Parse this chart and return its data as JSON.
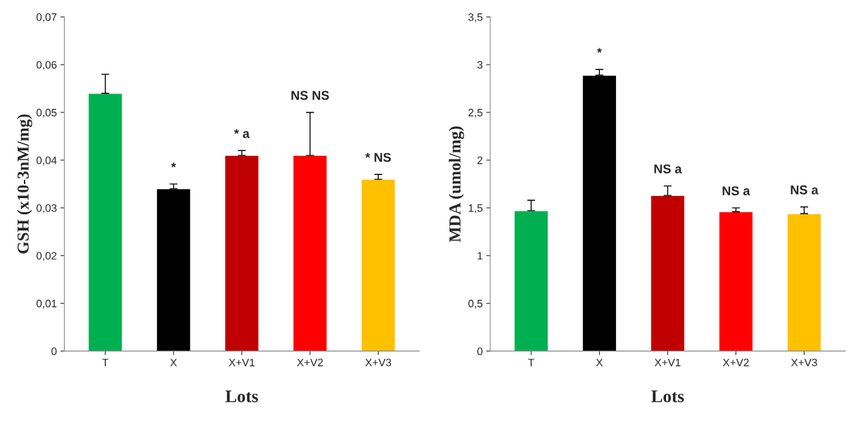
{
  "chart_data": [
    {
      "type": "bar",
      "xlabel": "Lots",
      "ylabel": "GSH (x10-3nM/mg)",
      "categories": [
        "T",
        "X",
        "X+V1",
        "X+V2",
        "X+V3"
      ],
      "values": [
        0.054,
        0.034,
        0.041,
        0.041,
        0.036
      ],
      "colors": [
        "#00b050",
        "#000000",
        "#c00000",
        "#ff0000",
        "#ffc000"
      ],
      "errors": [
        [
          0.054,
          0.058
        ],
        [
          0.034,
          0.035
        ],
        [
          0.041,
          0.042
        ],
        [
          0.041,
          0.05
        ],
        [
          0.036,
          0.037
        ]
      ],
      "ylim": [
        0,
        0.07
      ],
      "yticks": [
        0,
        {
          "value": 0.01,
          "label": "0,01"
        },
        {
          "value": 0.02,
          "label": "0,02"
        },
        {
          "value": 0.03,
          "label": "0,03"
        },
        {
          "value": 0.04,
          "label": "0,04"
        },
        {
          "value": 0.05,
          "label": "0,05"
        },
        {
          "value": 0.06,
          "label": "0,06"
        },
        {
          "value": 0.07,
          "label": "0,07"
        }
      ],
      "annotations": [
        "*",
        "* a",
        "NS NS",
        "* NS"
      ]
    },
    {
      "type": "bar",
      "xlabel": "Lots",
      "ylabel": "MDA (umol/mg)",
      "categories": [
        "T",
        "X",
        "X+V1",
        "X+V2",
        "X+V3"
      ],
      "values": [
        1.47,
        2.89,
        1.63,
        1.46,
        1.44
      ],
      "colors": [
        "#00b050",
        "#000000",
        "#c00000",
        "#ff0000",
        "#ffc000"
      ],
      "errors": [
        [
          1.47,
          1.58
        ],
        [
          2.89,
          2.95
        ],
        [
          1.63,
          1.73
        ],
        [
          1.46,
          1.5
        ],
        [
          1.44,
          1.51
        ]
      ],
      "ylim": [
        0,
        3.5
      ],
      "yticks": [
        0,
        {
          "value": 0.5,
          "label": "0,5"
        },
        1,
        {
          "value": 1.5,
          "label": "1,5"
        },
        2,
        {
          "value": 2.5,
          "label": "2,5"
        },
        3,
        {
          "value": 3.5,
          "label": "3,5"
        }
      ],
      "annotations": [
        "*",
        "NS a",
        "NS a",
        "NS a"
      ]
    }
  ]
}
